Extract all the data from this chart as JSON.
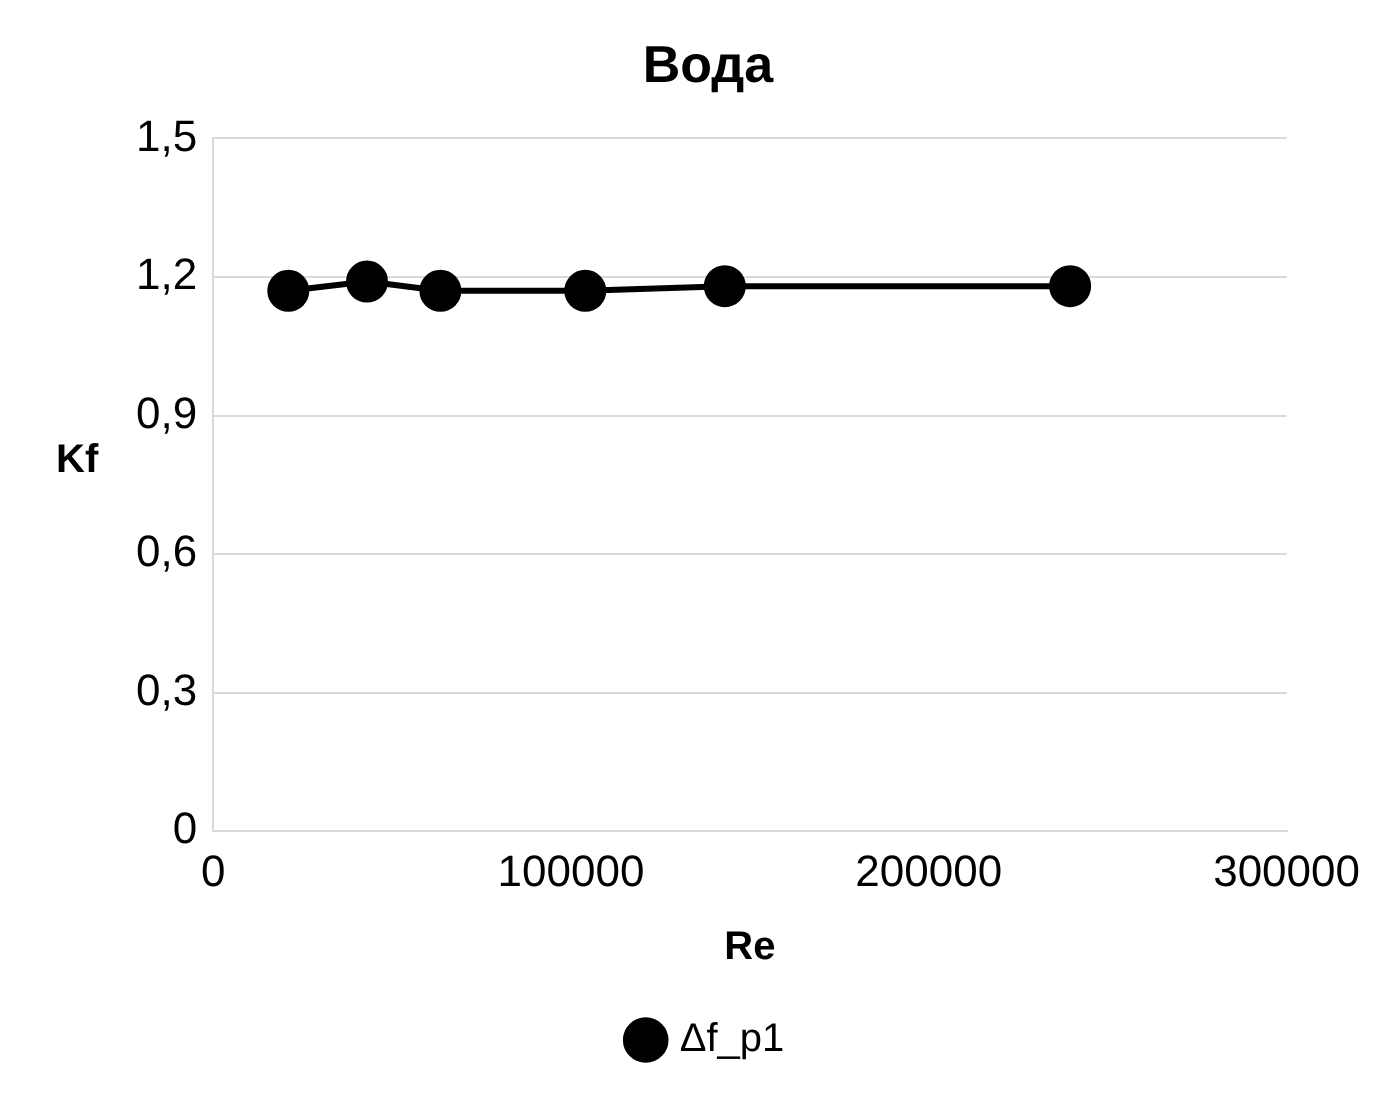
{
  "chart_data": {
    "type": "line",
    "title": "Вода",
    "xlabel": "Re",
    "ylabel": "Kf",
    "x": [
      21000,
      43000,
      63500,
      104000,
      143000,
      239500
    ],
    "series": [
      {
        "name": "Δf_p1",
        "color": "#000000",
        "values": [
          1.17,
          1.19,
          1.17,
          1.17,
          1.18,
          1.18
        ]
      }
    ],
    "xlim": [
      0,
      300000
    ],
    "xticks": [
      0,
      100000,
      200000,
      300000
    ],
    "ylim": [
      0,
      1.5
    ],
    "yticks": [
      0,
      {
        "value": 0.3,
        "label": "0,3"
      },
      {
        "value": 0.6,
        "label": "0,6"
      },
      {
        "value": 0.9,
        "label": "0,9"
      },
      {
        "value": 1.2,
        "label": "1,2"
      },
      {
        "value": 1.5,
        "label": "1,5"
      }
    ],
    "grid": "y",
    "legend": "bottom",
    "marker": "circle",
    "line_style": "solid"
  }
}
